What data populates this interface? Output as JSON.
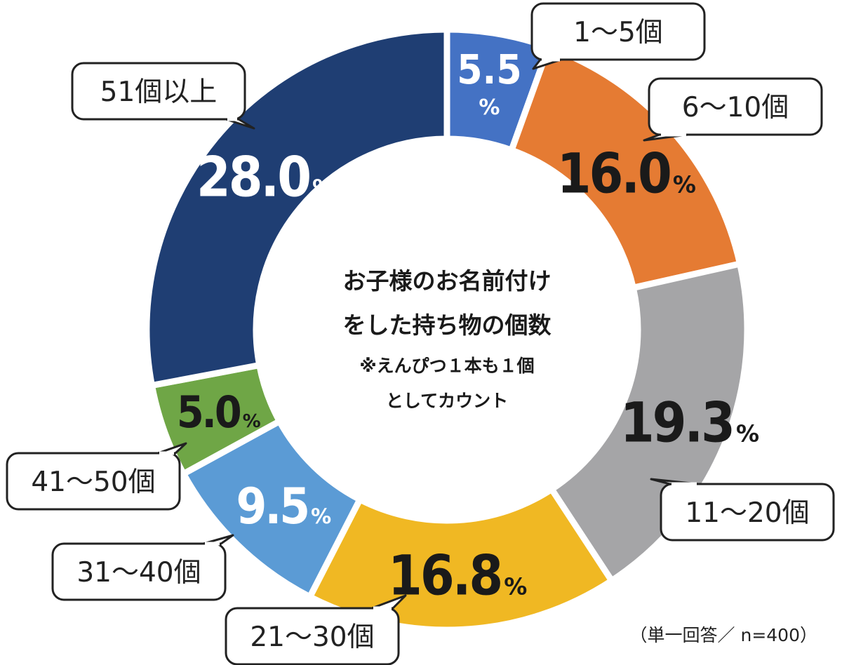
{
  "chart_data": {
    "type": "pie",
    "categories": [
      "1〜5個",
      "6〜10個",
      "11〜20個",
      "21〜30個",
      "31〜40個",
      "41〜50個",
      "51個以上"
    ],
    "values": [
      5.5,
      16.0,
      19.3,
      16.8,
      9.5,
      5.0,
      28.0
    ],
    "value_labels": [
      "5.5",
      "16.0",
      "19.3",
      "16.8",
      "9.5",
      "5.0",
      "28.0"
    ],
    "unit": "%",
    "colors": [
      "#4472c4",
      "#e57b33",
      "#a5a5a7",
      "#f0b823",
      "#5b9bd5",
      "#6fa646",
      "#1f3e73"
    ],
    "label_colors": [
      "#ffffff",
      "#1a1a1a",
      "#1a1a1a",
      "#1a1a1a",
      "#ffffff",
      "#1a1a1a",
      "#ffffff"
    ],
    "center_text": [
      "お子様のお名前付け",
      "をした持ち物の個数",
      "※えんぴつ１本も１個",
      "としてカウント"
    ],
    "note": "（単一回答／ n=400）",
    "donut": true
  }
}
